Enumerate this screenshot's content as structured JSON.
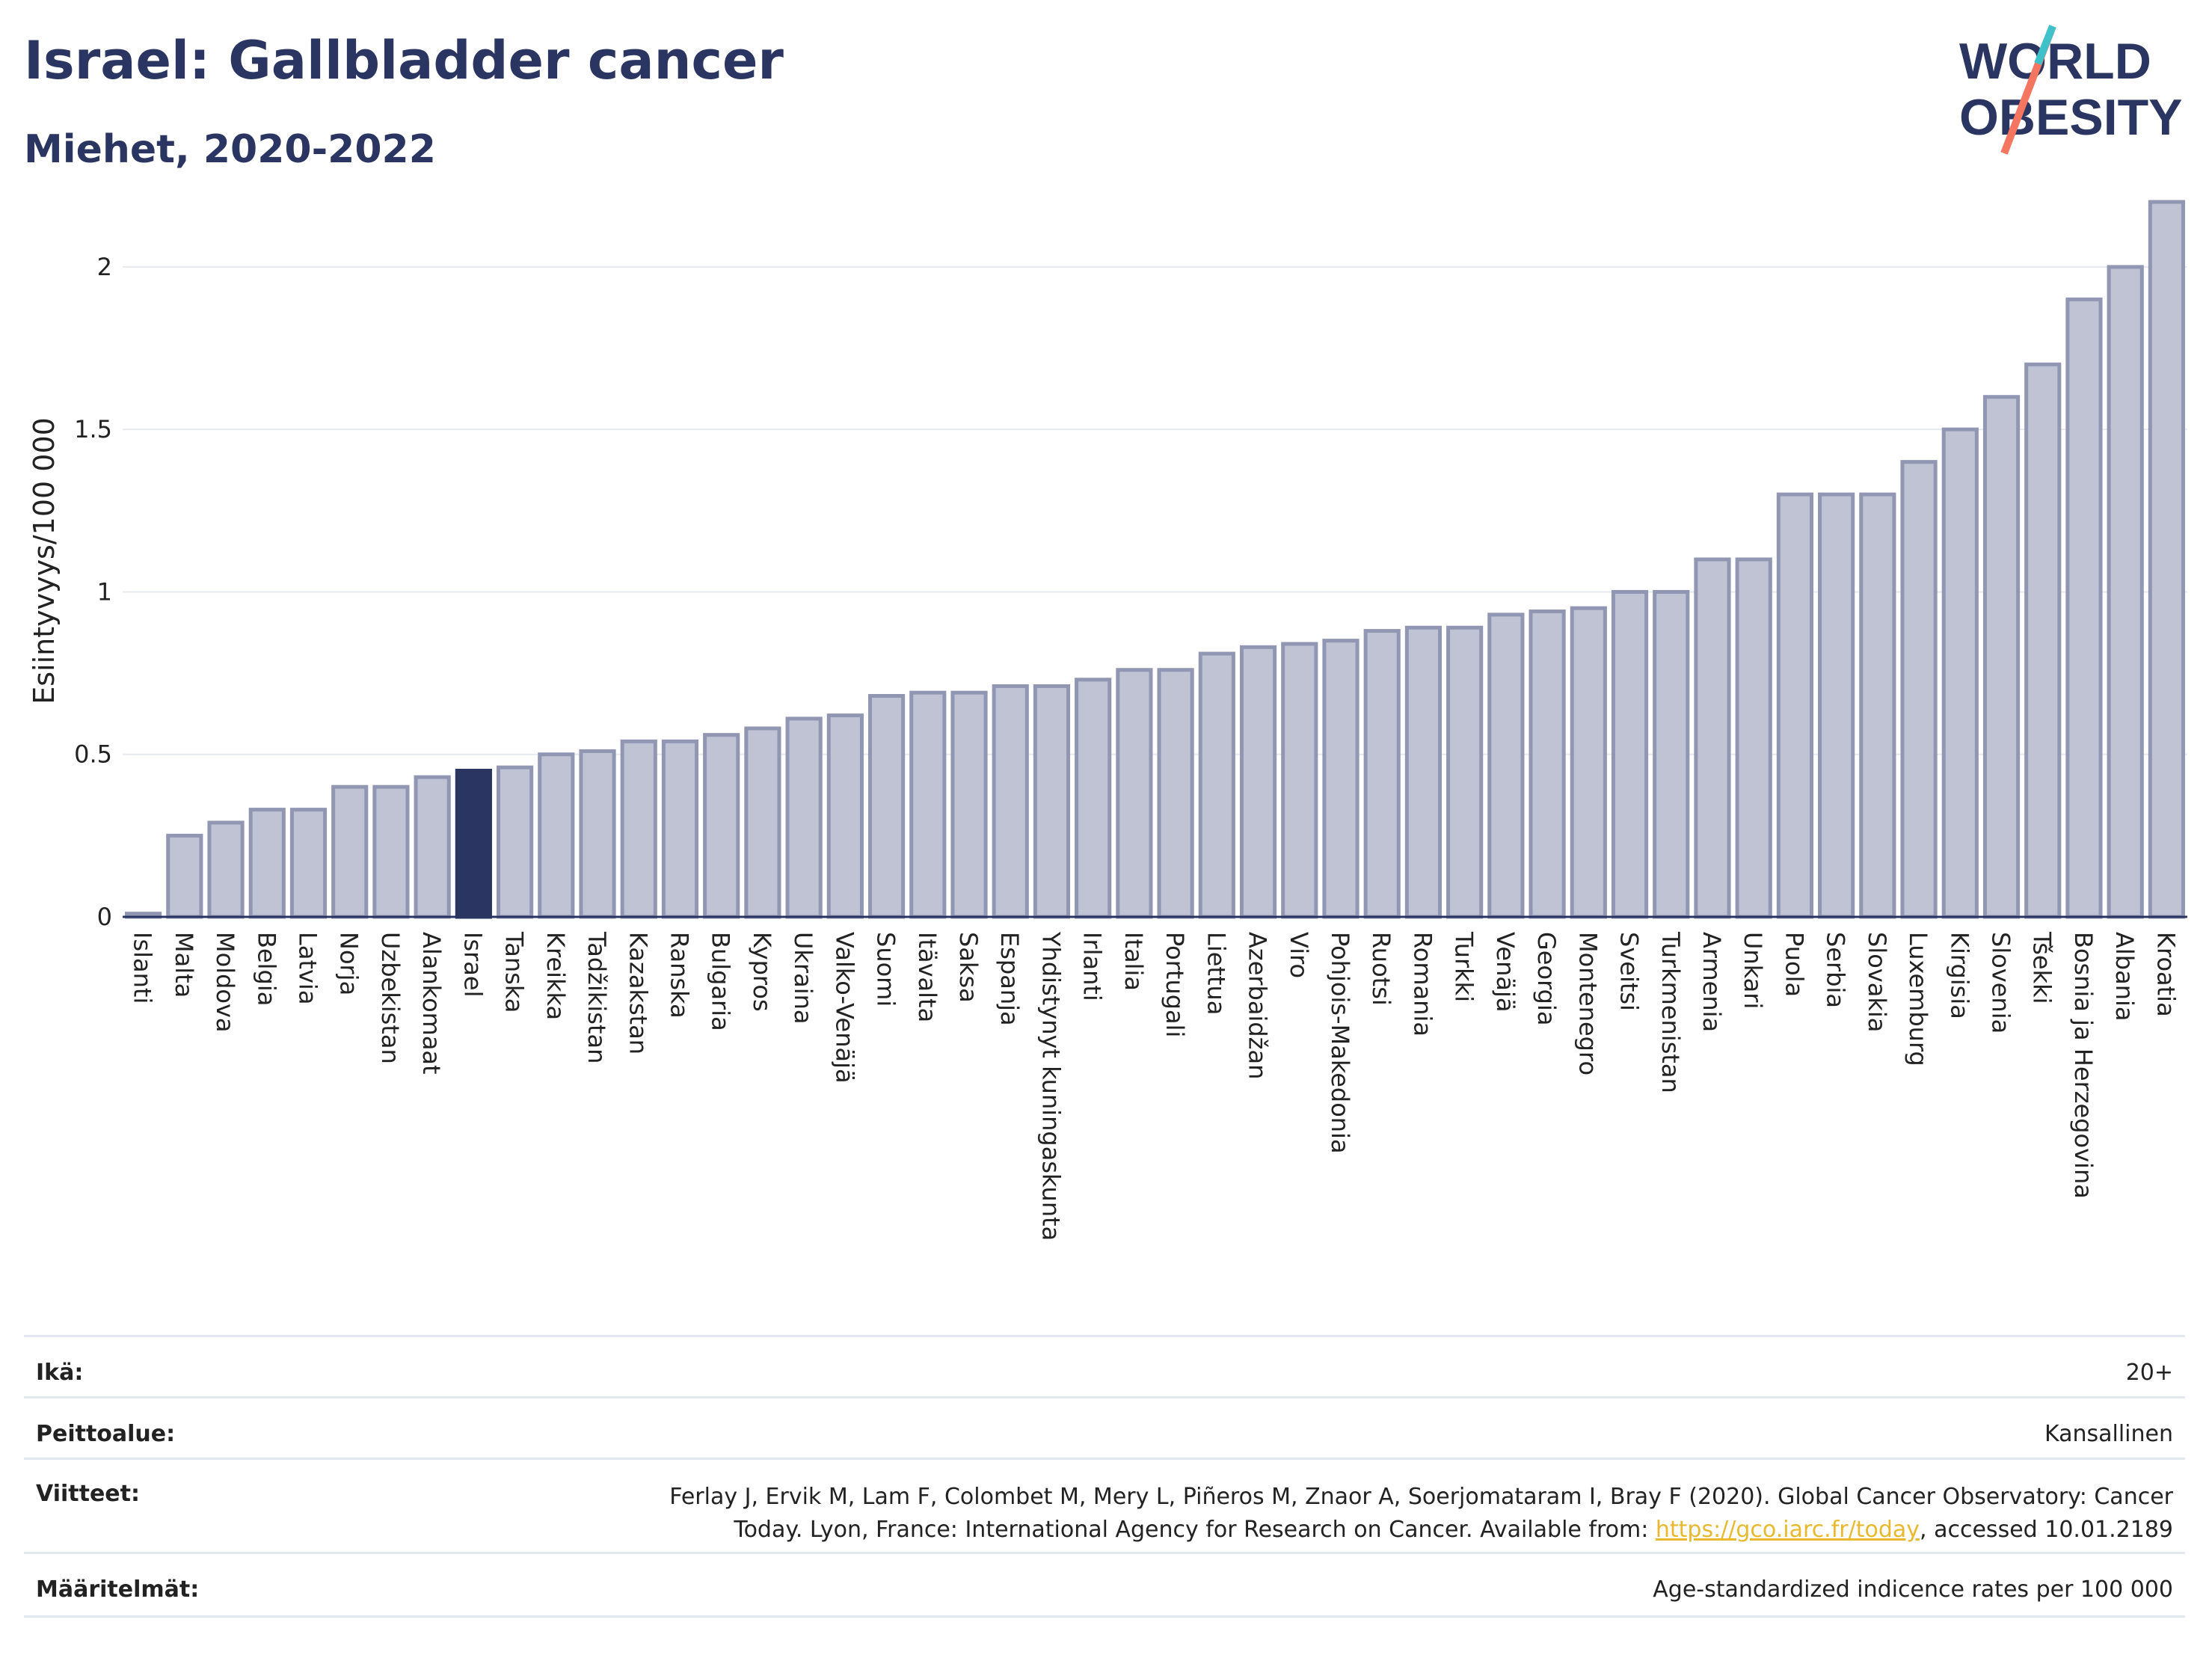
{
  "header": {
    "title": "Israel: Gallbladder cancer",
    "subtitle": "Miehet, 2020-2022"
  },
  "logo": {
    "line1": "WORLD",
    "line2": "OBESITY"
  },
  "colors": {
    "bar": "#bfc3d3",
    "bar_edge": "#9196b3",
    "highlight": "#2a3561",
    "text": "#2a3561",
    "link": "#e8b92f"
  },
  "chart_data": {
    "type": "bar",
    "title": "Israel: Gallbladder cancer",
    "subtitle": "Miehet, 2020-2022",
    "ylabel": "Esiintyvyys/100 000",
    "ylim": [
      0,
      2.2
    ],
    "yticks": [
      0,
      0.5,
      1,
      1.5,
      2
    ],
    "ytick_labels": [
      "0",
      "0.5",
      "1",
      "1.5",
      "2"
    ],
    "highlight": "Israel",
    "categories": [
      "Islanti",
      "Malta",
      "Moldova",
      "Belgia",
      "Latvia",
      "Norja",
      "Uzbekistan",
      "Alankomaat",
      "Israel",
      "Tanska",
      "Kreikka",
      "Tadžikistan",
      "Kazakstan",
      "Ranska",
      "Bulgaria",
      "Kypros",
      "Ukraina",
      "Valko-Venäjä",
      "Suomi",
      "Itävalta",
      "Saksa",
      "Espanja",
      "Yhdistynyt kuningaskunta",
      "Irlanti",
      "Italia",
      "Portugali",
      "Liettua",
      "Azerbaidžan",
      "Viro",
      "Pohjois-Makedonia",
      "Ruotsi",
      "Romania",
      "Turkki",
      "Venäjä",
      "Georgia",
      "Montenegro",
      "Sveitsi",
      "Turkmenistan",
      "Armenia",
      "Unkari",
      "Puola",
      "Serbia",
      "Slovakia",
      "Luxemburg",
      "Kirgisia",
      "Slovenia",
      "Tšekki",
      "Bosnia ja Herzegovina",
      "Albania",
      "Kroatia"
    ],
    "values": [
      0.01,
      0.25,
      0.29,
      0.33,
      0.33,
      0.4,
      0.4,
      0.43,
      0.45,
      0.46,
      0.5,
      0.51,
      0.54,
      0.54,
      0.56,
      0.58,
      0.61,
      0.62,
      0.68,
      0.69,
      0.69,
      0.71,
      0.71,
      0.73,
      0.76,
      0.76,
      0.81,
      0.83,
      0.84,
      0.85,
      0.88,
      0.89,
      0.89,
      0.93,
      0.94,
      0.95,
      1.0,
      1.0,
      1.1,
      1.1,
      1.3,
      1.3,
      1.3,
      1.4,
      1.5,
      1.6,
      1.7,
      1.9,
      2.0,
      2.2
    ]
  },
  "info": {
    "rows": [
      {
        "label": "Ikä:",
        "value": "20+"
      },
      {
        "label": "Peittoalue:",
        "value": "Kansallinen"
      },
      {
        "label": "Viitteet:",
        "value_line1": "Ferlay J, Ervik M, Lam F, Colombet M, Mery L, Piñeros M, Znaor A, Soerjomataram I, Bray F (2020). Global Cancer Observatory: Cancer",
        "value_line2_pre": "Today. Lyon, France: International Agency for Research on Cancer. Available from: ",
        "link": "https://gco.iarc.fr/today",
        "value_line2_post": ", accessed 10.01.2189"
      },
      {
        "label": "Määritelmät:",
        "value": "Age-standardized indicence rates per 100 000"
      }
    ]
  }
}
